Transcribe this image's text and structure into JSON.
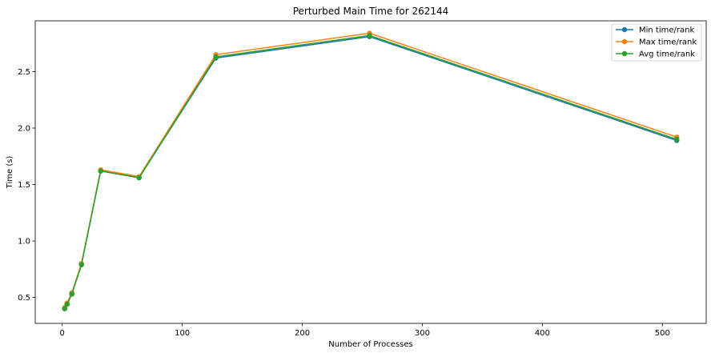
{
  "chart_data": {
    "type": "line",
    "title": "Perturbed Main Time for 262144",
    "xlabel": "Number of Processes",
    "ylabel": "Time (s)",
    "xlim": [
      -22.5,
      536.5
    ],
    "ylim": [
      0.27,
      2.95
    ],
    "xticks": [
      0,
      100,
      200,
      300,
      400,
      500
    ],
    "xtick_labels": [
      "0",
      "100",
      "200",
      "300",
      "400",
      "500"
    ],
    "yticks": [
      0.5,
      1.0,
      1.5,
      2.0,
      2.5
    ],
    "ytick_labels": [
      "0.5",
      "1.0",
      "1.5",
      "2.0",
      "2.5"
    ],
    "grid": false,
    "legend_position": "top-right",
    "x": [
      2,
      4,
      8,
      16,
      32,
      64,
      128,
      256,
      512
    ],
    "series": [
      {
        "name": "Min time/rank",
        "color": "#1f77b4",
        "marker": "circle",
        "values": [
          0.4,
          0.44,
          0.53,
          0.79,
          1.62,
          1.56,
          2.62,
          2.81,
          1.89
        ]
      },
      {
        "name": "Max time/rank",
        "color": "#ff7f0e",
        "marker": "circle",
        "values": [
          0.41,
          0.45,
          0.54,
          0.8,
          1.63,
          1.57,
          2.65,
          2.84,
          1.92
        ]
      },
      {
        "name": "Avg time/rank",
        "color": "#2ca02c",
        "marker": "circle",
        "values": [
          0.4,
          0.44,
          0.53,
          0.79,
          1.62,
          1.56,
          2.63,
          2.82,
          1.9
        ]
      }
    ]
  }
}
